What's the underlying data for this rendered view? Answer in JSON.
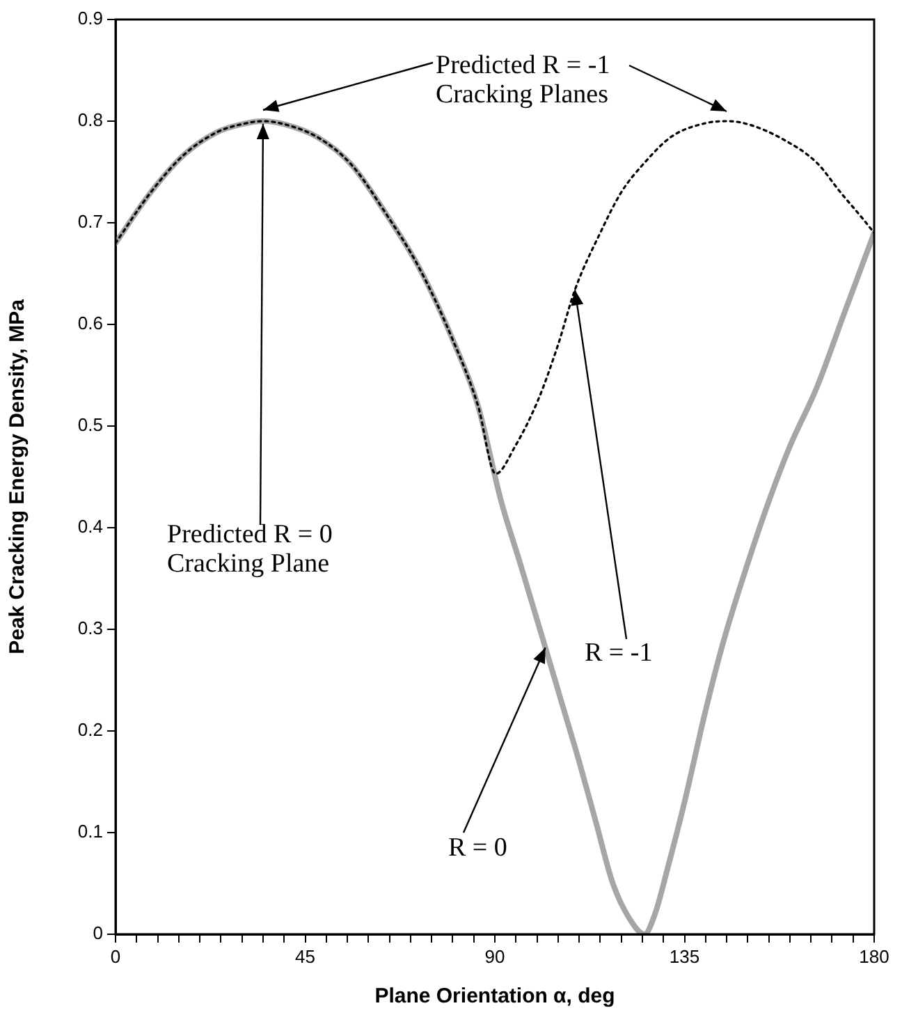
{
  "chart_data": {
    "type": "line",
    "xlabel": "Plane Orientation α, deg",
    "ylabel": "Peak Cracking Energy Density, MPa",
    "xlim": [
      0,
      180
    ],
    "ylim": [
      0,
      0.9
    ],
    "xticks": [
      0,
      {
        "value": 5,
        "label": null
      },
      {
        "value": 10,
        "label": null
      },
      {
        "value": 15,
        "label": null
      },
      {
        "value": 20,
        "label": null
      },
      {
        "value": 25,
        "label": null
      },
      {
        "value": 30,
        "label": null
      },
      {
        "value": 35,
        "label": null
      },
      {
        "value": 40,
        "label": null
      },
      45,
      {
        "value": 50,
        "label": null
      },
      {
        "value": 55,
        "label": null
      },
      {
        "value": 60,
        "label": null
      },
      {
        "value": 65,
        "label": null
      },
      {
        "value": 70,
        "label": null
      },
      {
        "value": 75,
        "label": null
      },
      {
        "value": 80,
        "label": null
      },
      {
        "value": 85,
        "label": null
      },
      90,
      {
        "value": 95,
        "label": null
      },
      {
        "value": 100,
        "label": null
      },
      {
        "value": 105,
        "label": null
      },
      {
        "value": 110,
        "label": null
      },
      {
        "value": 115,
        "label": null
      },
      {
        "value": 120,
        "label": null
      },
      {
        "value": 125,
        "label": null
      },
      {
        "value": 130,
        "label": null
      },
      135,
      {
        "value": 140,
        "label": null
      },
      {
        "value": 145,
        "label": null
      },
      {
        "value": 150,
        "label": null
      },
      {
        "value": 155,
        "label": null
      },
      {
        "value": 160,
        "label": null
      },
      {
        "value": 165,
        "label": null
      },
      {
        "value": 170,
        "label": null
      },
      {
        "value": 175,
        "label": null
      },
      180
    ],
    "yticks": [
      0,
      0.1,
      0.2,
      0.3,
      0.4,
      0.5,
      0.6,
      0.7,
      0.8,
      0.9
    ],
    "grid": false,
    "legend": false,
    "marker": "none",
    "series": [
      {
        "color": "#a6a6a6",
        "line_style": "solid",
        "x": [
          0,
          8,
          16,
          24,
          30,
          35,
          40,
          48,
          56,
          64,
          72,
          80,
          86,
          91.5,
          96,
          102,
          106,
          110,
          114,
          118,
          122,
          125.5,
          128,
          131,
          135,
          140,
          144.3,
          150,
          155,
          160,
          166.4,
          173,
          180
        ],
        "values": [
          0.68,
          0.728,
          0.766,
          0.789,
          0.797,
          0.8,
          0.797,
          0.784,
          0.757,
          0.71,
          0.656,
          0.585,
          0.52,
          0.426,
          0.365,
          0.282,
          0.226,
          0.17,
          0.11,
          0.05,
          0.015,
          0,
          0.02,
          0.065,
          0.13,
          0.22,
          0.289,
          0.365,
          0.426,
          0.48,
          0.538,
          0.612,
          0.69
        ]
      },
      {
        "color": "#000000",
        "line_style": "dotted",
        "x": [
          0,
          8,
          16,
          24,
          30,
          35,
          40,
          48,
          56,
          64,
          72,
          80,
          86,
          90.2,
          94.8,
          100.3,
          105,
          109,
          115,
          120,
          125.5,
          132,
          140,
          145.3,
          150,
          158,
          166.4,
          172,
          177.3,
          180
        ],
        "values": [
          0.68,
          0.728,
          0.766,
          0.789,
          0.797,
          0.8,
          0.797,
          0.784,
          0.757,
          0.71,
          0.656,
          0.585,
          0.52,
          0.453,
          0.48,
          0.526,
          0.58,
          0.634,
          0.69,
          0.73,
          0.759,
          0.785,
          0.798,
          0.8,
          0.797,
          0.783,
          0.759,
          0.73,
          0.704,
          0.69
        ]
      }
    ],
    "annotations": [
      {
        "text": "Predicted R = -1 Cracking Planes",
        "x": 35,
        "y": 0.8
      },
      {
        "text": "Predicted R = 0 Cracking Plane",
        "x": 35,
        "y": 0.8
      },
      {
        "text": "R = -1",
        "x": 109,
        "y": 0.634
      },
      {
        "text": "R = 0",
        "x": 102,
        "y": 0.282
      }
    ]
  }
}
